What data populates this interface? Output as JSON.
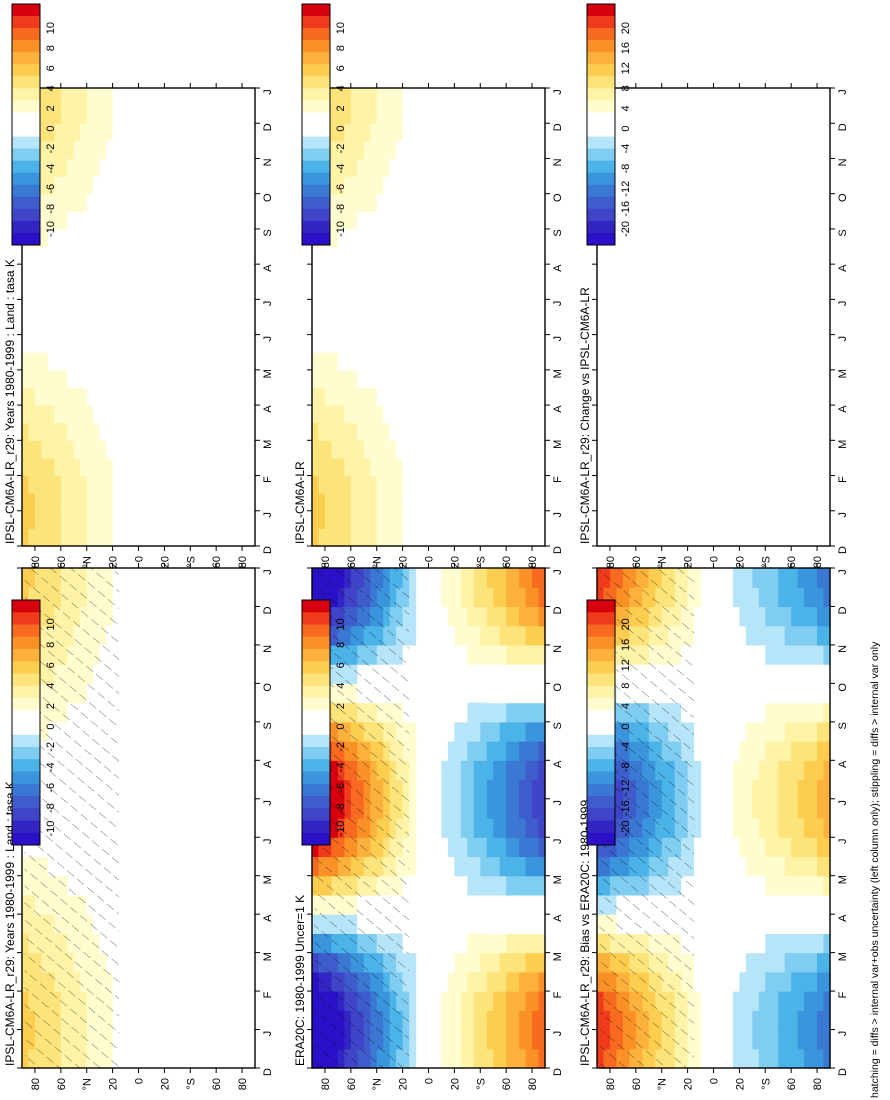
{
  "footer_note": "hatching = diffs > internal var+obs uncertainty (left column only); stippling = diffs > internal var only",
  "colorbars": {
    "ticks_10": [
      "10",
      "8",
      "6",
      "4",
      "2",
      "0",
      "-2",
      "-4",
      "-6",
      "-8",
      "-10"
    ],
    "ticks_20": [
      "20",
      "16",
      "12",
      "8",
      "4",
      "0",
      "-4",
      "-8",
      "-12",
      "-16",
      "-20"
    ],
    "colors": [
      "#d7000f",
      "#ef3b1c",
      "#f76a20",
      "#fa9127",
      "#fbb13c",
      "#fdcd4f",
      "#fde47a",
      "#fff3a8",
      "#fffccf",
      "#ffffff",
      "#ffffff",
      "#b6e4f8",
      "#7fcdf0",
      "#4cb3e8",
      "#3a95dd",
      "#3a78d3",
      "#3e5ccc",
      "#3f44c8",
      "#3325c4",
      "#2a10c6"
    ]
  },
  "chart_data": [
    {
      "type": "heatmap",
      "title": "IPSL-CM6A-LR_r29: Years 1980-1999 : Land : tasa K",
      "colorbar": "ticks_10",
      "months": [
        "D",
        "J",
        "F",
        "M",
        "A",
        "M",
        "J",
        "J",
        "A",
        "S",
        "O",
        "N",
        "D",
        "J"
      ],
      "lat_ticks": [
        "80",
        "60",
        "°N",
        "20",
        "0",
        "20",
        "°S",
        "60",
        "80"
      ],
      "lat_range": [
        -90,
        90
      ],
      "value_range": [
        -10,
        10
      ],
      "hatched": true
    },
    {
      "type": "heatmap",
      "title": "IPSL-CM6A-LR_r29: Years 1980-1999 : Land : tasa K",
      "colorbar": "ticks_10",
      "months": [
        "D",
        "J",
        "F",
        "M",
        "A",
        "M",
        "J",
        "J",
        "A",
        "S",
        "O",
        "N",
        "D",
        "J"
      ],
      "lat_ticks": [
        "80",
        "60",
        "°N",
        "20",
        "0",
        "20",
        "°S",
        "60",
        "80"
      ],
      "lat_range": [
        -90,
        90
      ],
      "value_range": [
        -10,
        10
      ],
      "hatched": false
    },
    {
      "type": "heatmap",
      "title": "ERA20C: 1980-1999 Uncer=1 K",
      "colorbar": "ticks_10",
      "months": [
        "D",
        "J",
        "F",
        "M",
        "A",
        "M",
        "J",
        "J",
        "A",
        "S",
        "O",
        "N",
        "D",
        "J"
      ],
      "lat_ticks": [
        "80",
        "60",
        "°N",
        "20",
        "0",
        "20",
        "°S",
        "60",
        "80"
      ],
      "lat_range": [
        -90,
        90
      ],
      "value_range": [
        -10,
        10
      ],
      "hatched": true
    },
    {
      "type": "heatmap",
      "title": "IPSL-CM6A-LR",
      "colorbar": "ticks_10",
      "months": [
        "D",
        "J",
        "F",
        "M",
        "A",
        "M",
        "J",
        "J",
        "A",
        "S",
        "O",
        "N",
        "D",
        "J"
      ],
      "lat_ticks": [
        "80",
        "60",
        "°N",
        "20",
        "0",
        "20",
        "°S",
        "60",
        "80"
      ],
      "lat_range": [
        -90,
        90
      ],
      "value_range": [
        -10,
        10
      ],
      "hatched": false
    },
    {
      "type": "heatmap",
      "title": "IPSL-CM6A-LR_r29: Bias vs ERA20C: 1980-1999",
      "colorbar": "ticks_20",
      "months": [
        "D",
        "J",
        "F",
        "M",
        "A",
        "M",
        "J",
        "J",
        "A",
        "S",
        "O",
        "N",
        "D",
        "J"
      ],
      "lat_ticks": [
        "80",
        "60",
        "°N",
        "20",
        "0",
        "20",
        "°S",
        "60",
        "80"
      ],
      "lat_range": [
        -90,
        90
      ],
      "value_range": [
        -20,
        20
      ],
      "hatched": true
    },
    {
      "type": "heatmap",
      "title": "IPSL-CM6A-LR_r29: Change vs IPSL-CM6A-LR",
      "colorbar": "ticks_20",
      "months": [
        "D",
        "J",
        "F",
        "M",
        "A",
        "M",
        "J",
        "J",
        "A",
        "S",
        "O",
        "N",
        "D",
        "J"
      ],
      "lat_ticks": [
        "80",
        "60",
        "°N",
        "20",
        "0",
        "20",
        "°S",
        "60",
        "80"
      ],
      "lat_range": [
        -90,
        90
      ],
      "value_range": [
        -20,
        20
      ],
      "hatched": false
    }
  ]
}
